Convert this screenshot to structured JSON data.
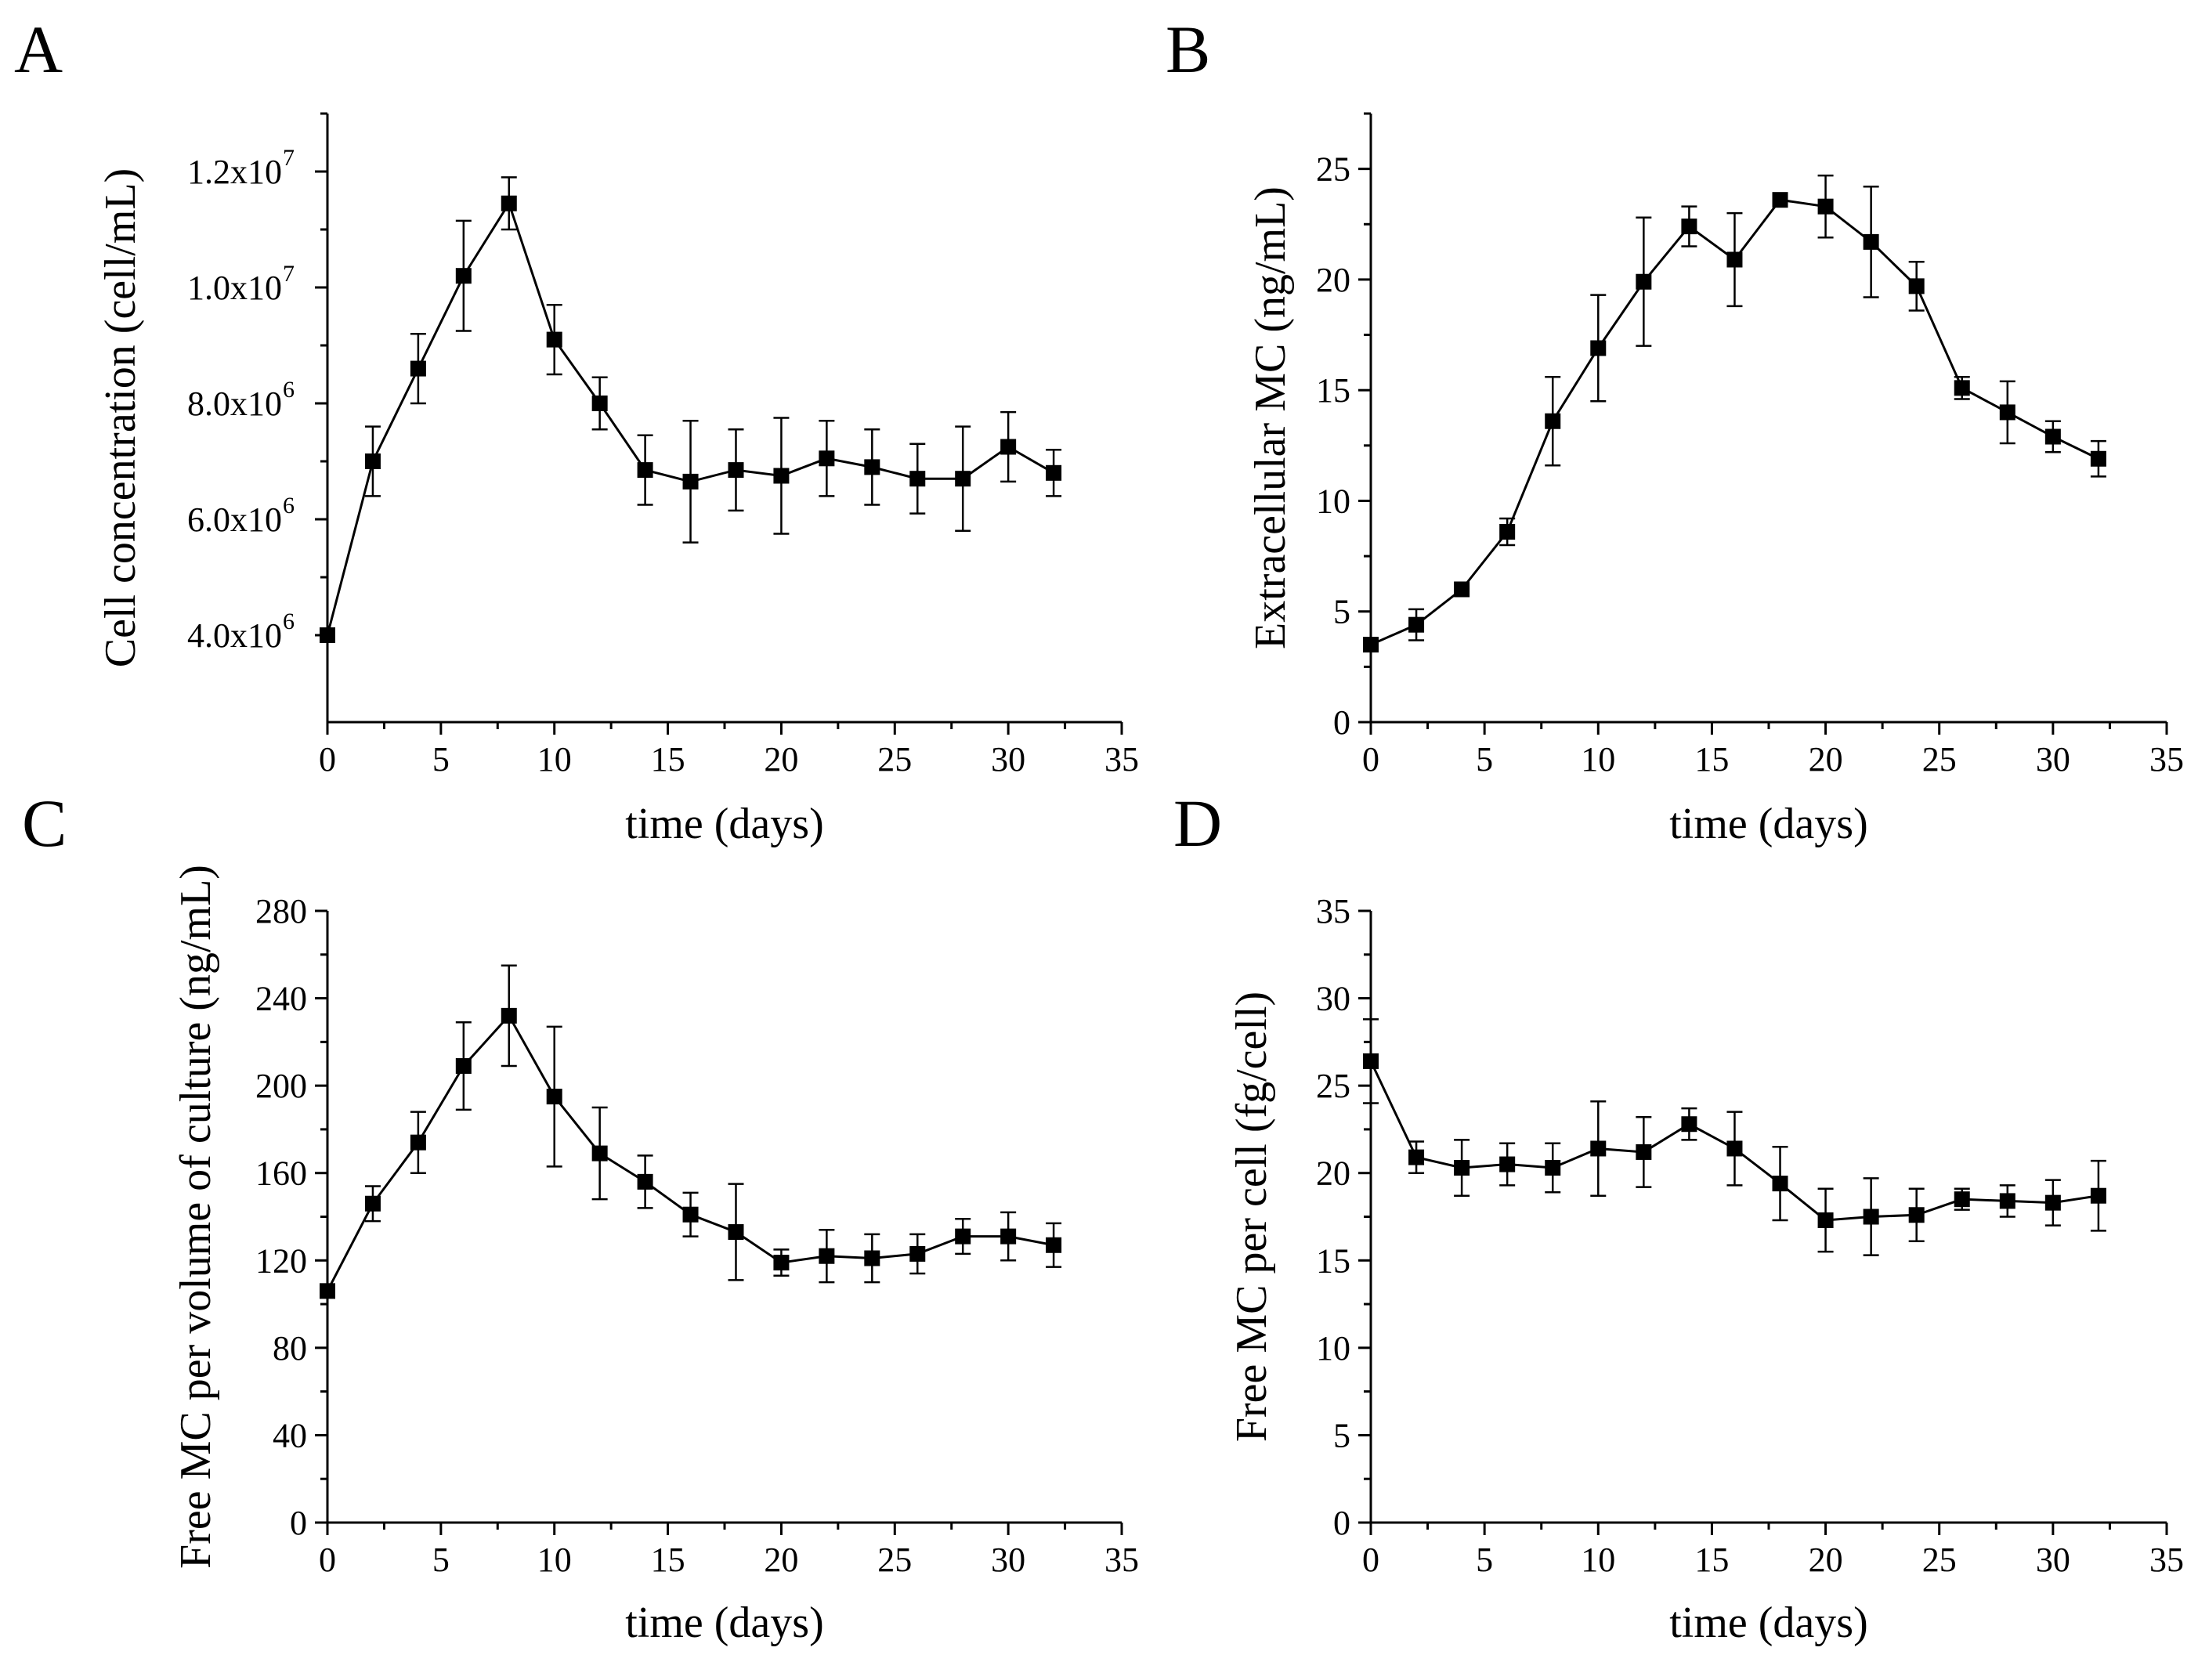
{
  "chart_data": [
    {
      "panel": "A",
      "type": "line",
      "xlabel": "time (days)",
      "ylabel": "Cell concentration (cell/mL)",
      "xlim": [
        0,
        35
      ],
      "ylim": [
        2500000,
        13000000
      ],
      "xticks": [
        0,
        5,
        10,
        15,
        20,
        25,
        30,
        35
      ],
      "yticks": [
        {
          "value": 4000000,
          "mantissa": "4.0x10",
          "exp": "6"
        },
        {
          "value": 6000000,
          "mantissa": "6.0x10",
          "exp": "6"
        },
        {
          "value": 8000000,
          "mantissa": "8.0x10",
          "exp": "6"
        },
        {
          "value": 10000000,
          "mantissa": "1.0x10",
          "exp": "7"
        },
        {
          "value": 12000000,
          "mantissa": "1.2x10",
          "exp": "7"
        }
      ],
      "x": [
        0,
        2,
        4,
        6,
        8,
        10,
        12,
        14,
        16,
        18,
        20,
        22,
        24,
        26,
        28,
        30,
        32
      ],
      "y": [
        4000000,
        7000000,
        8600000,
        10200000,
        11450000,
        9100000,
        8000000,
        6850000,
        6650000,
        6850000,
        6750000,
        7050000,
        6900000,
        6700000,
        6700000,
        7250000,
        6800000
      ],
      "err": [
        0,
        600000,
        600000,
        950000,
        450000,
        600000,
        450000,
        600000,
        1050000,
        700000,
        1000000,
        650000,
        650000,
        600000,
        900000,
        600000,
        400000
      ]
    },
    {
      "panel": "B",
      "type": "line",
      "xlabel": "time (days)",
      "ylabel": "Extracellular MC (ng/mL)",
      "xlim": [
        0,
        35
      ],
      "ylim": [
        0,
        27.5
      ],
      "xticks": [
        0,
        5,
        10,
        15,
        20,
        25,
        30,
        35
      ],
      "yticks": [
        {
          "value": 0,
          "label": "0"
        },
        {
          "value": 5,
          "label": "5"
        },
        {
          "value": 10,
          "label": "10"
        },
        {
          "value": 15,
          "label": "15"
        },
        {
          "value": 20,
          "label": "20"
        },
        {
          "value": 25,
          "label": "25"
        }
      ],
      "x": [
        0,
        2,
        4,
        6,
        8,
        10,
        12,
        14,
        16,
        18,
        20,
        22,
        24,
        26,
        28,
        30,
        32
      ],
      "y": [
        3.5,
        4.4,
        6.0,
        8.6,
        13.6,
        16.9,
        19.9,
        22.4,
        20.9,
        23.6,
        23.3,
        21.7,
        19.7,
        15.1,
        14.0,
        12.9,
        11.9
      ],
      "err": [
        0,
        0.7,
        0,
        0.6,
        2.0,
        2.4,
        2.9,
        0.9,
        2.1,
        0,
        1.4,
        2.5,
        1.1,
        0.5,
        1.4,
        0.7,
        0.8
      ]
    },
    {
      "panel": "C",
      "type": "line",
      "xlabel": "time (days)",
      "ylabel": "Free MC per volume of culture (ng/mL)",
      "xlim": [
        0,
        35
      ],
      "ylim": [
        0,
        280
      ],
      "xticks": [
        0,
        5,
        10,
        15,
        20,
        25,
        30,
        35
      ],
      "yticks": [
        {
          "value": 0,
          "label": "0"
        },
        {
          "value": 40,
          "label": "40"
        },
        {
          "value": 80,
          "label": "80"
        },
        {
          "value": 120,
          "label": "120"
        },
        {
          "value": 160,
          "label": "160"
        },
        {
          "value": 200,
          "label": "200"
        },
        {
          "value": 240,
          "label": "240"
        },
        {
          "value": 280,
          "label": "280"
        }
      ],
      "x": [
        0,
        2,
        4,
        6,
        8,
        10,
        12,
        14,
        16,
        18,
        20,
        22,
        24,
        26,
        28,
        30,
        32
      ],
      "y": [
        106,
        146,
        174,
        209,
        232,
        195,
        169,
        156,
        141,
        133,
        119,
        122,
        121,
        123,
        131,
        131,
        127
      ],
      "err": [
        0,
        8,
        14,
        20,
        23,
        32,
        21,
        12,
        10,
        22,
        6,
        12,
        11,
        9,
        8,
        11,
        10
      ]
    },
    {
      "panel": "D",
      "type": "line",
      "xlabel": "time (days)",
      "ylabel": "Free MC per cell (fg/cell)",
      "xlim": [
        0,
        35
      ],
      "ylim": [
        0,
        35
      ],
      "xticks": [
        0,
        5,
        10,
        15,
        20,
        25,
        30,
        35
      ],
      "yticks": [
        {
          "value": 0,
          "label": "0"
        },
        {
          "value": 5,
          "label": "5"
        },
        {
          "value": 10,
          "label": "10"
        },
        {
          "value": 15,
          "label": "15"
        },
        {
          "value": 20,
          "label": "20"
        },
        {
          "value": 25,
          "label": "25"
        },
        {
          "value": 30,
          "label": "30"
        },
        {
          "value": 35,
          "label": "35"
        }
      ],
      "x": [
        0,
        2,
        4,
        6,
        8,
        10,
        12,
        14,
        16,
        18,
        20,
        22,
        24,
        26,
        28,
        30,
        32
      ],
      "y": [
        26.4,
        20.9,
        20.3,
        20.5,
        20.3,
        21.4,
        21.2,
        22.8,
        21.4,
        19.4,
        17.3,
        17.5,
        17.6,
        18.5,
        18.4,
        18.3,
        18.7
      ],
      "err": [
        2.4,
        0.9,
        1.6,
        1.2,
        1.4,
        2.7,
        2.0,
        0.9,
        2.1,
        2.1,
        1.8,
        2.2,
        1.5,
        0.6,
        0.9,
        1.3,
        2.0
      ]
    }
  ]
}
